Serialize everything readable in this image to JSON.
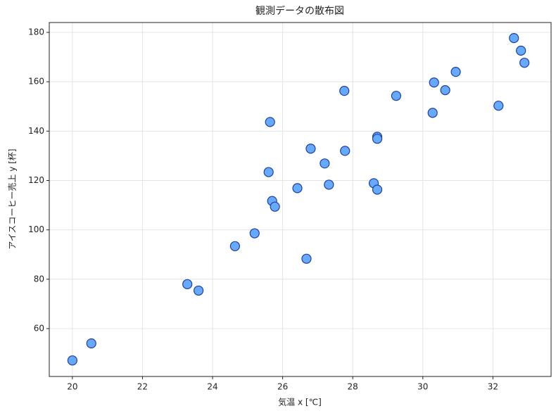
{
  "chart_data": {
    "type": "scatter",
    "title": "観測データの散布図",
    "xlabel": "気温 x [℃]",
    "ylabel": "アイスコーヒー売上 y [杯]",
    "series": [
      {
        "color": "#66aaff",
        "edgecolor": "#1f3fa0",
        "x": [
          20.0,
          20.54,
          23.28,
          23.6,
          24.64,
          25.2,
          25.64,
          25.6,
          25.7,
          25.78,
          26.42,
          26.68,
          26.8,
          27.2,
          27.32,
          27.76,
          27.78,
          28.6,
          28.7,
          28.7,
          28.7,
          29.24,
          30.28,
          30.32,
          30.64,
          30.94,
          32.16,
          32.6,
          32.8,
          32.9
        ],
        "values": [
          47.1,
          54.0,
          78.0,
          75.4,
          93.4,
          98.6,
          143.7,
          123.4,
          111.7,
          109.4,
          116.9,
          88.3,
          132.9,
          126.9,
          118.3,
          156.3,
          132.0,
          118.9,
          137.7,
          136.9,
          116.3,
          154.3,
          147.4,
          159.7,
          156.6,
          164.0,
          150.3,
          177.7,
          172.6,
          167.7
        ]
      }
    ],
    "xlim": [
      19.34,
      33.66
    ],
    "xticks": [
      20,
      22,
      24,
      26,
      28,
      30,
      32
    ],
    "ylim": [
      40.6,
      184
    ],
    "yticks": [
      60,
      80,
      100,
      120,
      140,
      160,
      180
    ],
    "grid": true
  }
}
